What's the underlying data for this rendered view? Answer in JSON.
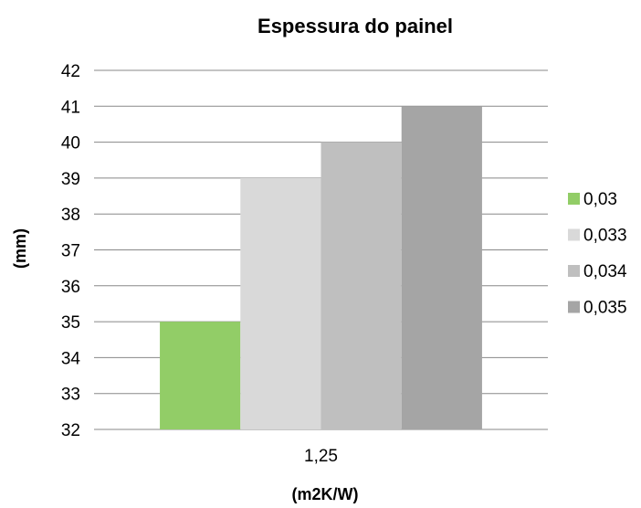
{
  "chart_data": {
    "type": "bar",
    "title": "Espessura do painel",
    "xlabel": "(m2K/W)",
    "ylabel": "(mm)",
    "categories": [
      "1,25"
    ],
    "series": [
      {
        "name": "0,03",
        "values": [
          35
        ],
        "color": "#92cd67"
      },
      {
        "name": "0,033",
        "values": [
          39
        ],
        "color": "#d9d9d9"
      },
      {
        "name": "0,034",
        "values": [
          40
        ],
        "color": "#bfbfbf"
      },
      {
        "name": "0,035",
        "values": [
          41
        ],
        "color": "#a5a5a5"
      }
    ],
    "ylim": [
      32,
      42
    ],
    "yticks": [
      "32",
      "33",
      "34",
      "35",
      "36",
      "37",
      "38",
      "39",
      "40",
      "41",
      "42"
    ],
    "grid": true,
    "legend_position": "right",
    "gridline_color": "#888888"
  }
}
